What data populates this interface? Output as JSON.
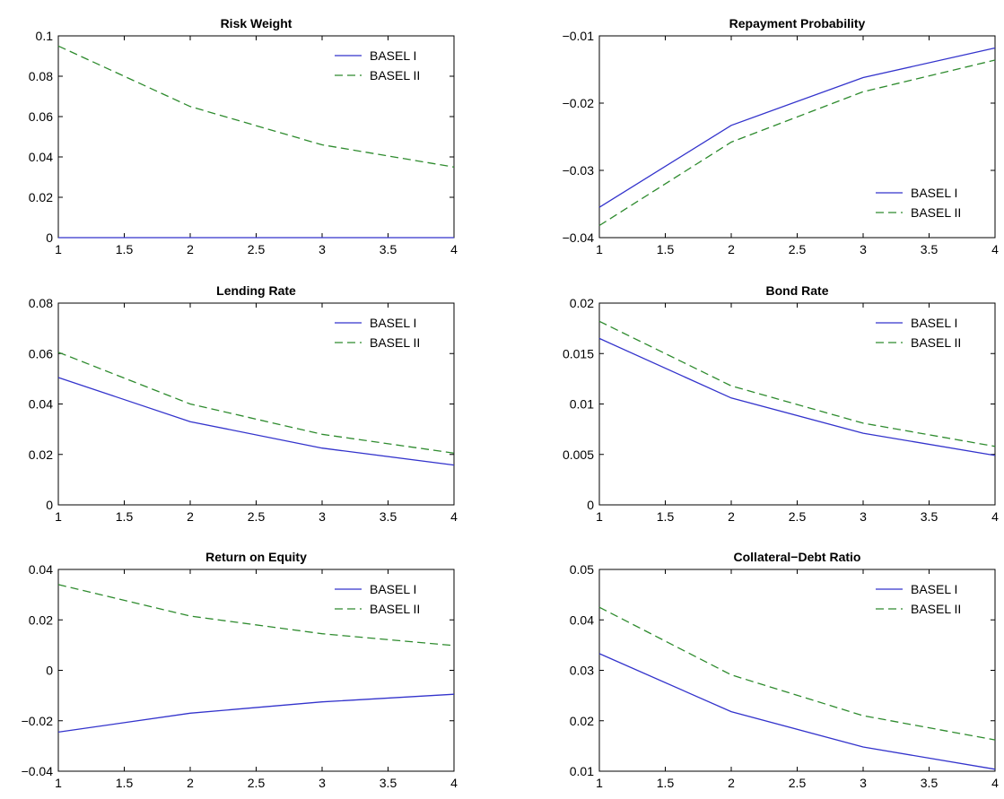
{
  "chart_data": [
    {
      "type": "line",
      "title": "Risk Weight",
      "x": [
        1,
        2,
        3,
        4
      ],
      "xlim": [
        1,
        4
      ],
      "xticks": [
        "1",
        "1.5",
        "2",
        "2.5",
        "3",
        "3.5",
        "4"
      ],
      "ylim": [
        0,
        0.1
      ],
      "yticks": [
        "0",
        "0.02",
        "0.04",
        "0.06",
        "0.08",
        "0.1"
      ],
      "legend_position": "top-right",
      "series": [
        {
          "name": "BASEL I",
          "values": [
            0,
            0,
            0,
            0
          ],
          "color": "#3333cc",
          "style": "solid"
        },
        {
          "name": "BASEL II",
          "values": [
            0.095,
            0.065,
            0.046,
            0.035
          ],
          "color": "#2e8b2e",
          "style": "dashed"
        }
      ]
    },
    {
      "type": "line",
      "title": "Repayment Probability",
      "x": [
        1,
        2,
        3,
        4
      ],
      "xlim": [
        1,
        4
      ],
      "xticks": [
        "1",
        "1.5",
        "2",
        "2.5",
        "3",
        "3.5",
        "4"
      ],
      "ylim": [
        -0.04,
        -0.01
      ],
      "yticks": [
        "−0.04",
        "−0.03",
        "−0.02",
        "−0.01"
      ],
      "legend_position": "bottom-right",
      "series": [
        {
          "name": "BASEL I",
          "values": [
            -0.0355,
            -0.0233,
            -0.0162,
            -0.0118
          ],
          "color": "#3333cc",
          "style": "solid"
        },
        {
          "name": "BASEL II",
          "values": [
            -0.0382,
            -0.0258,
            -0.0183,
            -0.0136
          ],
          "color": "#2e8b2e",
          "style": "dashed"
        }
      ]
    },
    {
      "type": "line",
      "title": "Lending Rate",
      "x": [
        1,
        2,
        3,
        4
      ],
      "xlim": [
        1,
        4
      ],
      "xticks": [
        "1",
        "1.5",
        "2",
        "2.5",
        "3",
        "3.5",
        "4"
      ],
      "ylim": [
        0,
        0.08
      ],
      "yticks": [
        "0",
        "0.02",
        "0.04",
        "0.06",
        "0.08"
      ],
      "legend_position": "top-right",
      "series": [
        {
          "name": "BASEL I",
          "values": [
            0.0505,
            0.033,
            0.0225,
            0.0158
          ],
          "color": "#3333cc",
          "style": "solid"
        },
        {
          "name": "BASEL II",
          "values": [
            0.0605,
            0.04,
            0.028,
            0.0205
          ],
          "color": "#2e8b2e",
          "style": "dashed"
        }
      ]
    },
    {
      "type": "line",
      "title": "Bond Rate",
      "x": [
        1,
        2,
        3,
        4
      ],
      "xlim": [
        1,
        4
      ],
      "xticks": [
        "1",
        "1.5",
        "2",
        "2.5",
        "3",
        "3.5",
        "4"
      ],
      "ylim": [
        0,
        0.02
      ],
      "yticks": [
        "0",
        "0.005",
        "0.01",
        "0.015",
        "0.02"
      ],
      "legend_position": "top-right",
      "series": [
        {
          "name": "BASEL I",
          "values": [
            0.0165,
            0.0106,
            0.0071,
            0.0049
          ],
          "color": "#3333cc",
          "style": "solid"
        },
        {
          "name": "BASEL II",
          "values": [
            0.0182,
            0.0118,
            0.0081,
            0.0058
          ],
          "color": "#2e8b2e",
          "style": "dashed"
        }
      ]
    },
    {
      "type": "line",
      "title": "Return on Equity",
      "x": [
        1,
        2,
        3,
        4
      ],
      "xlim": [
        1,
        4
      ],
      "xticks": [
        "1",
        "1.5",
        "2",
        "2.5",
        "3",
        "3.5",
        "4"
      ],
      "ylim": [
        -0.04,
        0.04
      ],
      "yticks": [
        "−0.04",
        "−0.02",
        "0",
        "0.02",
        "0.04"
      ],
      "legend_position": "top-right",
      "series": [
        {
          "name": "BASEL I",
          "values": [
            -0.0245,
            -0.017,
            -0.0125,
            -0.0095
          ],
          "color": "#3333cc",
          "style": "solid"
        },
        {
          "name": "BASEL II",
          "values": [
            0.034,
            0.0215,
            0.0145,
            0.0098
          ],
          "color": "#2e8b2e",
          "style": "dashed"
        }
      ]
    },
    {
      "type": "line",
      "title": "Collateral−Debt Ratio",
      "x": [
        1,
        2,
        3,
        4
      ],
      "xlim": [
        1,
        4
      ],
      "xticks": [
        "1",
        "1.5",
        "2",
        "2.5",
        "3",
        "3.5",
        "4"
      ],
      "ylim": [
        0.01,
        0.05
      ],
      "yticks": [
        "0.01",
        "0.02",
        "0.03",
        "0.04",
        "0.05"
      ],
      "legend_position": "top-right",
      "series": [
        {
          "name": "BASEL I",
          "values": [
            0.0333,
            0.0218,
            0.0148,
            0.0104
          ],
          "color": "#3333cc",
          "style": "solid"
        },
        {
          "name": "BASEL II",
          "values": [
            0.0425,
            0.0291,
            0.021,
            0.0162
          ],
          "color": "#2e8b2e",
          "style": "dashed"
        }
      ]
    }
  ]
}
